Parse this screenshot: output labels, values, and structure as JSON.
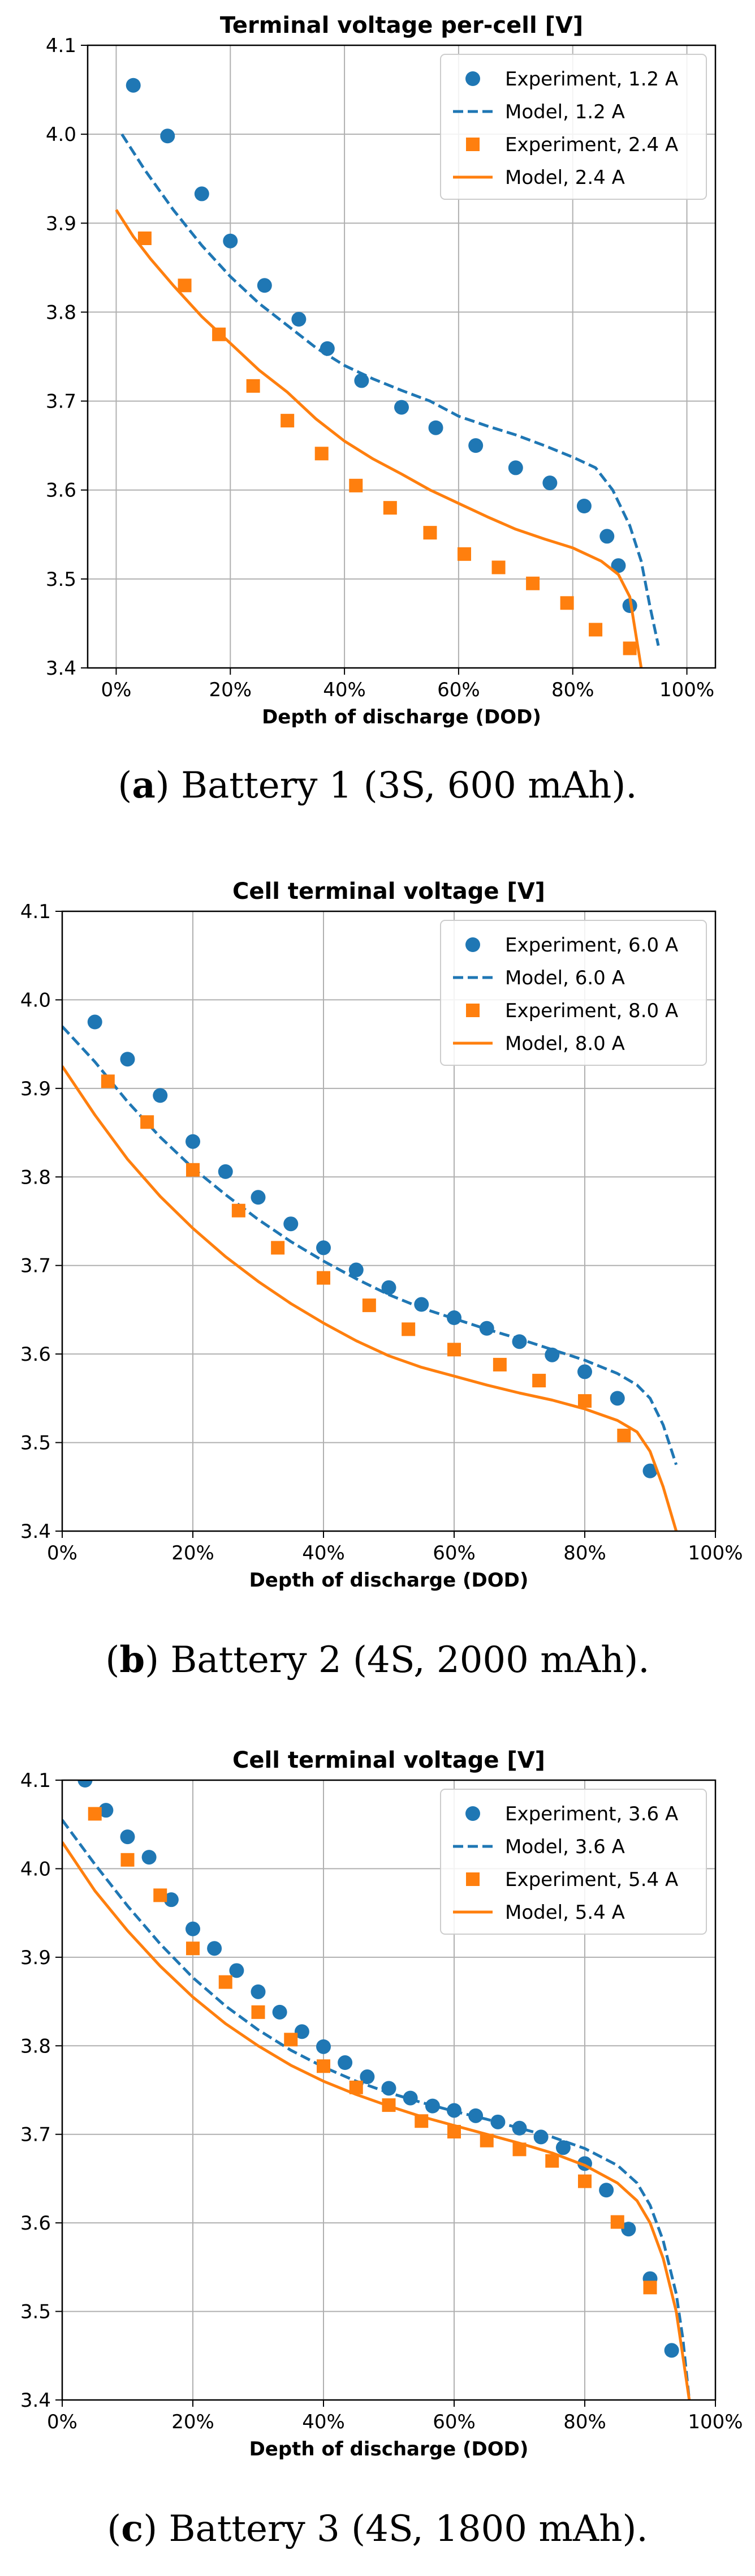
{
  "colors": {
    "blue": "#1f77b4",
    "orange": "#ff7f0e",
    "grid": "#b0b0b0",
    "axis": "#000000"
  },
  "chart_data": [
    {
      "type": "line",
      "title": "Terminal voltage per-cell [V]",
      "xlabel": "Depth of discharge (DOD)",
      "ylabel": "",
      "xlim": [
        -0.05,
        1.05
      ],
      "ylim": [
        3.4,
        4.1
      ],
      "xticks": [
        0,
        0.2,
        0.4,
        0.6,
        0.8,
        1.0
      ],
      "xtick_labels": [
        "0%",
        "20%",
        "40%",
        "60%",
        "80%",
        "100%"
      ],
      "yticks": [
        3.4,
        3.5,
        3.6,
        3.7,
        3.8,
        3.9,
        4.0,
        4.1
      ],
      "ytick_labels": [
        "3.4",
        "3.5",
        "3.6",
        "3.7",
        "3.8",
        "3.9",
        "4.0",
        "4.1"
      ],
      "grid": true,
      "legend_position": "top-right",
      "series": [
        {
          "name": "Experiment, 1.2 A",
          "kind": "scatter",
          "marker": "circle",
          "color": "#1f77b4",
          "x": [
            0.03,
            0.09,
            0.15,
            0.2,
            0.26,
            0.32,
            0.37,
            0.43,
            0.5,
            0.56,
            0.63,
            0.7,
            0.76,
            0.82,
            0.86,
            0.88,
            0.9
          ],
          "y": [
            4.055,
            3.998,
            3.933,
            3.88,
            3.83,
            3.792,
            3.759,
            3.723,
            3.693,
            3.67,
            3.65,
            3.625,
            3.608,
            3.582,
            3.548,
            3.515,
            3.47
          ]
        },
        {
          "name": "Model, 1.2 A",
          "kind": "line",
          "dash": true,
          "color": "#1f77b4",
          "x": [
            0.01,
            0.05,
            0.1,
            0.15,
            0.2,
            0.25,
            0.3,
            0.35,
            0.4,
            0.45,
            0.5,
            0.55,
            0.6,
            0.65,
            0.7,
            0.75,
            0.8,
            0.84,
            0.87,
            0.9,
            0.92,
            0.935,
            0.95
          ],
          "y": [
            4.0,
            3.96,
            3.915,
            3.875,
            3.84,
            3.81,
            3.785,
            3.76,
            3.74,
            3.725,
            3.712,
            3.7,
            3.683,
            3.672,
            3.662,
            3.65,
            3.637,
            3.625,
            3.6,
            3.56,
            3.52,
            3.47,
            3.425
          ]
        },
        {
          "name": "Experiment, 2.4 A",
          "kind": "scatter",
          "marker": "square",
          "color": "#ff7f0e",
          "x": [
            0.05,
            0.12,
            0.18,
            0.24,
            0.3,
            0.36,
            0.42,
            0.48,
            0.55,
            0.61,
            0.67,
            0.73,
            0.79,
            0.84,
            0.9
          ],
          "y": [
            3.883,
            3.83,
            3.775,
            3.717,
            3.678,
            3.641,
            3.605,
            3.58,
            3.552,
            3.528,
            3.513,
            3.495,
            3.473,
            3.443,
            3.422
          ]
        },
        {
          "name": "Model, 2.4 A",
          "kind": "line",
          "dash": false,
          "color": "#ff7f0e",
          "x": [
            0.0,
            0.03,
            0.06,
            0.1,
            0.15,
            0.2,
            0.25,
            0.3,
            0.35,
            0.4,
            0.45,
            0.5,
            0.55,
            0.6,
            0.65,
            0.7,
            0.75,
            0.8,
            0.85,
            0.88,
            0.9,
            0.91,
            0.92
          ],
          "y": [
            3.915,
            3.885,
            3.86,
            3.83,
            3.795,
            3.765,
            3.735,
            3.71,
            3.68,
            3.655,
            3.635,
            3.618,
            3.6,
            3.585,
            3.57,
            3.556,
            3.545,
            3.535,
            3.52,
            3.505,
            3.48,
            3.44,
            3.4
          ]
        }
      ]
    },
    {
      "type": "line",
      "title": "Cell terminal voltage [V]",
      "xlabel": "Depth of discharge (DOD)",
      "ylabel": "",
      "xlim": [
        0,
        1.0
      ],
      "ylim": [
        3.4,
        4.1
      ],
      "xticks": [
        0,
        0.2,
        0.4,
        0.6,
        0.8,
        1.0
      ],
      "xtick_labels": [
        "0%",
        "20%",
        "40%",
        "60%",
        "80%",
        "100%"
      ],
      "yticks": [
        3.4,
        3.5,
        3.6,
        3.7,
        3.8,
        3.9,
        4.0,
        4.1
      ],
      "ytick_labels": [
        "3.4",
        "3.5",
        "3.6",
        "3.7",
        "3.8",
        "3.9",
        "4.0",
        "4.1"
      ],
      "grid": true,
      "legend_position": "top-right",
      "series": [
        {
          "name": "Experiment, 6.0 A",
          "kind": "scatter",
          "marker": "circle",
          "color": "#1f77b4",
          "x": [
            0.05,
            0.1,
            0.15,
            0.2,
            0.25,
            0.3,
            0.35,
            0.4,
            0.45,
            0.5,
            0.55,
            0.6,
            0.65,
            0.7,
            0.75,
            0.8,
            0.85,
            0.9
          ],
          "y": [
            3.975,
            3.933,
            3.892,
            3.84,
            3.806,
            3.777,
            3.747,
            3.72,
            3.695,
            3.675,
            3.656,
            3.641,
            3.629,
            3.614,
            3.599,
            3.58,
            3.55,
            3.468
          ]
        },
        {
          "name": "Model, 6.0 A",
          "kind": "line",
          "dash": true,
          "color": "#1f77b4",
          "x": [
            0.0,
            0.05,
            0.1,
            0.15,
            0.2,
            0.25,
            0.3,
            0.35,
            0.4,
            0.45,
            0.5,
            0.55,
            0.6,
            0.65,
            0.7,
            0.75,
            0.8,
            0.85,
            0.88,
            0.9,
            0.92,
            0.94
          ],
          "y": [
            3.97,
            3.93,
            3.885,
            3.845,
            3.81,
            3.78,
            3.752,
            3.727,
            3.705,
            3.685,
            3.667,
            3.652,
            3.64,
            3.628,
            3.617,
            3.605,
            3.593,
            3.578,
            3.565,
            3.55,
            3.52,
            3.475
          ]
        },
        {
          "name": "Experiment, 8.0 A",
          "kind": "scatter",
          "marker": "square",
          "color": "#ff7f0e",
          "x": [
            0.07,
            0.13,
            0.2,
            0.27,
            0.33,
            0.4,
            0.47,
            0.53,
            0.6,
            0.67,
            0.73,
            0.8,
            0.86
          ],
          "y": [
            3.908,
            3.862,
            3.808,
            3.762,
            3.72,
            3.686,
            3.655,
            3.628,
            3.605,
            3.588,
            3.57,
            3.547,
            3.508
          ]
        },
        {
          "name": "Model, 8.0 A",
          "kind": "line",
          "dash": false,
          "color": "#ff7f0e",
          "x": [
            0.0,
            0.05,
            0.1,
            0.15,
            0.2,
            0.25,
            0.3,
            0.35,
            0.4,
            0.45,
            0.5,
            0.55,
            0.6,
            0.65,
            0.7,
            0.75,
            0.8,
            0.85,
            0.88,
            0.9,
            0.92,
            0.94
          ],
          "y": [
            3.925,
            3.87,
            3.82,
            3.778,
            3.742,
            3.71,
            3.682,
            3.657,
            3.635,
            3.615,
            3.598,
            3.585,
            3.575,
            3.565,
            3.556,
            3.548,
            3.538,
            3.525,
            3.512,
            3.49,
            3.45,
            3.4
          ]
        }
      ]
    },
    {
      "type": "line",
      "title": "Cell terminal voltage [V]",
      "xlabel": "Depth of discharge (DOD)",
      "ylabel": "",
      "xlim": [
        0,
        1.0
      ],
      "ylim": [
        3.4,
        4.1
      ],
      "xticks": [
        0,
        0.2,
        0.4,
        0.6,
        0.8,
        1.0
      ],
      "xtick_labels": [
        "0%",
        "20%",
        "40%",
        "60%",
        "80%",
        "100%"
      ],
      "yticks": [
        3.4,
        3.5,
        3.6,
        3.7,
        3.8,
        3.9,
        4.0,
        4.1
      ],
      "ytick_labels": [
        "3.4",
        "3.5",
        "3.6",
        "3.7",
        "3.8",
        "3.9",
        "4.0",
        "4.1"
      ],
      "grid": true,
      "legend_position": "top-right",
      "series": [
        {
          "name": "Experiment, 3.6 A",
          "kind": "scatter",
          "marker": "circle",
          "color": "#1f77b4",
          "x": [
            0.035,
            0.067,
            0.1,
            0.133,
            0.167,
            0.2,
            0.233,
            0.267,
            0.3,
            0.333,
            0.367,
            0.4,
            0.433,
            0.467,
            0.5,
            0.533,
            0.567,
            0.6,
            0.633,
            0.667,
            0.7,
            0.733,
            0.767,
            0.8,
            0.833,
            0.867,
            0.9,
            0.933
          ],
          "y": [
            4.1,
            4.066,
            4.036,
            4.013,
            3.965,
            3.932,
            3.91,
            3.885,
            3.861,
            3.838,
            3.816,
            3.799,
            3.781,
            3.765,
            3.752,
            3.741,
            3.732,
            3.727,
            3.721,
            3.714,
            3.707,
            3.697,
            3.685,
            3.667,
            3.637,
            3.593,
            3.537,
            3.456
          ]
        },
        {
          "name": "Model, 3.6 A",
          "kind": "line",
          "dash": true,
          "color": "#1f77b4",
          "x": [
            0.0,
            0.05,
            0.1,
            0.15,
            0.2,
            0.25,
            0.3,
            0.35,
            0.4,
            0.45,
            0.5,
            0.55,
            0.6,
            0.65,
            0.7,
            0.75,
            0.8,
            0.85,
            0.88,
            0.9,
            0.92,
            0.94,
            0.95,
            0.96
          ],
          "y": [
            4.055,
            4.005,
            3.958,
            3.915,
            3.877,
            3.845,
            3.818,
            3.795,
            3.776,
            3.76,
            3.747,
            3.736,
            3.726,
            3.717,
            3.707,
            3.697,
            3.684,
            3.665,
            3.645,
            3.62,
            3.58,
            3.52,
            3.47,
            3.4
          ]
        },
        {
          "name": "Experiment, 5.4 A",
          "kind": "scatter",
          "marker": "square",
          "color": "#ff7f0e",
          "x": [
            0.05,
            0.1,
            0.15,
            0.2,
            0.25,
            0.3,
            0.35,
            0.4,
            0.45,
            0.5,
            0.55,
            0.6,
            0.65,
            0.7,
            0.75,
            0.8,
            0.85,
            0.9
          ],
          "y": [
            4.062,
            4.01,
            3.97,
            3.91,
            3.872,
            3.838,
            3.807,
            3.777,
            3.753,
            3.733,
            3.715,
            3.703,
            3.693,
            3.683,
            3.67,
            3.647,
            3.601,
            3.527
          ]
        },
        {
          "name": "Model, 5.4 A",
          "kind": "line",
          "dash": false,
          "color": "#ff7f0e",
          "x": [
            0.0,
            0.05,
            0.1,
            0.15,
            0.2,
            0.25,
            0.3,
            0.35,
            0.4,
            0.45,
            0.5,
            0.55,
            0.6,
            0.65,
            0.7,
            0.75,
            0.8,
            0.85,
            0.88,
            0.9,
            0.92,
            0.94,
            0.95,
            0.96
          ],
          "y": [
            4.03,
            3.975,
            3.93,
            3.89,
            3.855,
            3.825,
            3.8,
            3.778,
            3.76,
            3.745,
            3.732,
            3.72,
            3.71,
            3.7,
            3.69,
            3.679,
            3.665,
            3.645,
            3.625,
            3.6,
            3.56,
            3.5,
            3.45,
            3.4
          ]
        }
      ]
    }
  ],
  "captions": [
    {
      "label": "a",
      "text": "Battery 1 (3S, 600 mAh)."
    },
    {
      "label": "b",
      "text": "Battery 2 (4S, 2000 mAh)."
    },
    {
      "label": "c",
      "text": "Battery 3 (4S, 1800 mAh)."
    }
  ]
}
